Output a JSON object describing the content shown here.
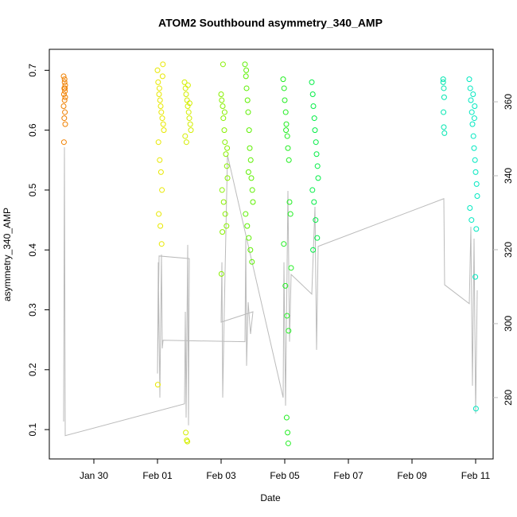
{
  "chart_data": {
    "type": "scatter",
    "title": "ATOM2 Southbound asymmetry_340_AMP",
    "x_label": "Date",
    "y_label": "asymmetry_340_AMP",
    "xlim": [
      28.6,
      42.55
    ],
    "xticks": [
      {
        "value": 30,
        "label": "Jan 30"
      },
      {
        "value": 32,
        "label": "Feb 01"
      },
      {
        "value": 34,
        "label": "Feb 03"
      },
      {
        "value": 36,
        "label": "Feb 05"
      },
      {
        "value": 38,
        "label": "Feb 07"
      },
      {
        "value": 40,
        "label": "Feb 09"
      },
      {
        "value": 42,
        "label": "Feb 11"
      }
    ],
    "ylim": [
      0.051,
      0.735
    ],
    "yticks": [
      0.1,
      0.2,
      0.3,
      0.4,
      0.5,
      0.6,
      0.7
    ],
    "y2lim": [
      263.4,
      374.2
    ],
    "y2ticks": [
      280,
      300,
      320,
      340,
      360
    ],
    "y2_color": "#bbbbbb",
    "series": [
      {
        "type": "line",
        "axis": "y2",
        "color": "#bbbbbb",
        "x": [
          29.05,
          29.075,
          29.1,
          32.85,
          32.875,
          32.9,
          32.95,
          32.975,
          33.0,
          32.05,
          32.0,
          32.025,
          32.075,
          32.125,
          32.15,
          32.175,
          34.75,
          34.775,
          34.8,
          34.85,
          34.925,
          35.0,
          34.0,
          34.025,
          34.05,
          34.1,
          34.2,
          35.95,
          35.975,
          36.025,
          36.1,
          36.15,
          36.2,
          36.85,
          36.95,
          37.0,
          37.05,
          41.0,
          41.025,
          41.8,
          41.85,
          41.9,
          41.95,
          42.0,
          42.05
        ],
        "values": [
          273.5,
          347.7,
          269.7,
          278.3,
          303.2,
          274.6,
          321.3,
          272.5,
          317.6,
          318.3,
          286.5,
          316.6,
          280,
          318.7,
          293.3,
          295.5,
          295.1,
          323.0,
          288.6,
          305.8,
          297.2,
          303.2,
          300.4,
          316.6,
          280,
          303.7,
          345.6,
          280,
          316.6,
          277.8,
          335.9,
          295.1,
          313.3,
          308.0,
          331.6,
          292.9,
          320.9,
          333.8,
          310.5,
          305.4,
          326.2,
          283.2,
          323.0,
          275.7,
          309.0
        ]
      },
      {
        "color": "#f08000",
        "x": [
          29.05,
          29.08,
          29.1,
          29.07,
          29.09,
          29.06,
          29.1,
          29.08,
          29.05,
          29.09,
          29.07,
          29.1,
          29.06,
          29.08,
          29.09
        ],
        "values": [
          0.69,
          0.68,
          0.675,
          0.67,
          0.665,
          0.66,
          0.655,
          0.65,
          0.64,
          0.63,
          0.62,
          0.61,
          0.58,
          0.685,
          0.67
        ]
      },
      {
        "color": "#e8e800",
        "x": [
          32.0,
          32.02,
          32.05,
          32.08,
          32.1,
          32.12,
          32.15,
          32.18,
          32.2,
          32.03,
          32.07,
          32.11,
          32.14,
          32.17,
          32.04,
          32.09,
          32.13,
          32.01,
          32.06,
          32.16
        ],
        "values": [
          0.7,
          0.68,
          0.66,
          0.65,
          0.64,
          0.63,
          0.62,
          0.61,
          0.6,
          0.58,
          0.55,
          0.53,
          0.5,
          0.71,
          0.46,
          0.44,
          0.41,
          0.175,
          0.67,
          0.69
        ]
      },
      {
        "color": "#d4ee00",
        "x": [
          32.85,
          32.88,
          32.9,
          32.93,
          32.95,
          32.98,
          33.0,
          33.03,
          33.05,
          32.87,
          32.91,
          32.96,
          33.01,
          32.89,
          32.94,
          32.92
        ],
        "values": [
          0.68,
          0.67,
          0.66,
          0.65,
          0.64,
          0.63,
          0.62,
          0.61,
          0.6,
          0.59,
          0.58,
          0.675,
          0.645,
          0.095,
          0.08,
          0.082
        ]
      },
      {
        "color": "#88f000",
        "x": [
          34.0,
          34.02,
          34.05,
          34.07,
          34.1,
          34.12,
          34.15,
          34.18,
          34.2,
          34.03,
          34.08,
          34.13,
          34.17,
          34.01,
          34.06,
          34.11,
          34.19,
          34.04
        ],
        "values": [
          0.66,
          0.65,
          0.64,
          0.62,
          0.6,
          0.58,
          0.56,
          0.54,
          0.52,
          0.5,
          0.48,
          0.46,
          0.44,
          0.36,
          0.71,
          0.63,
          0.57,
          0.43
        ]
      },
      {
        "color": "#5cf000",
        "x": [
          34.75,
          34.78,
          34.8,
          34.83,
          34.85,
          34.88,
          34.9,
          34.93,
          34.95,
          34.98,
          35.0,
          34.77,
          34.82,
          34.87,
          34.92,
          34.97,
          34.79,
          34.86
        ],
        "values": [
          0.71,
          0.69,
          0.67,
          0.65,
          0.63,
          0.6,
          0.57,
          0.55,
          0.52,
          0.5,
          0.48,
          0.46,
          0.44,
          0.42,
          0.4,
          0.38,
          0.7,
          0.53
        ]
      },
      {
        "color": "#22ee22",
        "x": [
          35.95,
          35.98,
          36.0,
          36.03,
          36.05,
          36.08,
          36.1,
          36.13,
          36.15,
          36.18,
          36.2,
          35.97,
          36.02,
          36.07,
          36.12,
          36.06,
          36.09,
          36.11,
          36.04
        ],
        "values": [
          0.685,
          0.67,
          0.65,
          0.63,
          0.61,
          0.59,
          0.57,
          0.55,
          0.48,
          0.46,
          0.37,
          0.41,
          0.34,
          0.29,
          0.265,
          0.12,
          0.095,
          0.077,
          0.6
        ]
      },
      {
        "color": "#00ee44",
        "x": [
          36.85,
          36.88,
          36.9,
          36.93,
          36.95,
          36.98,
          37.0,
          37.03,
          37.05,
          36.87,
          36.92,
          36.97,
          37.02,
          36.89
        ],
        "values": [
          0.68,
          0.66,
          0.64,
          0.62,
          0.6,
          0.58,
          0.56,
          0.54,
          0.52,
          0.5,
          0.48,
          0.45,
          0.42,
          0.4
        ]
      },
      {
        "color": "#00e6b0",
        "x": [
          40.98,
          41.0,
          41.01,
          40.99,
          41.0,
          41.02,
          40.98
        ],
        "values": [
          0.685,
          0.67,
          0.655,
          0.63,
          0.605,
          0.595,
          0.68
        ]
      },
      {
        "color": "#00e8c0",
        "x": [
          41.8,
          41.83,
          41.85,
          41.88,
          41.9,
          41.93,
          41.95,
          41.98,
          42.0,
          42.03,
          42.05,
          41.82,
          41.87,
          41.92,
          41.97,
          42.02,
          41.99,
          42.01,
          41.96
        ],
        "values": [
          0.685,
          0.67,
          0.65,
          0.63,
          0.61,
          0.59,
          0.57,
          0.55,
          0.53,
          0.51,
          0.49,
          0.47,
          0.45,
          0.66,
          0.64,
          0.435,
          0.355,
          0.135,
          0.62
        ]
      }
    ]
  }
}
